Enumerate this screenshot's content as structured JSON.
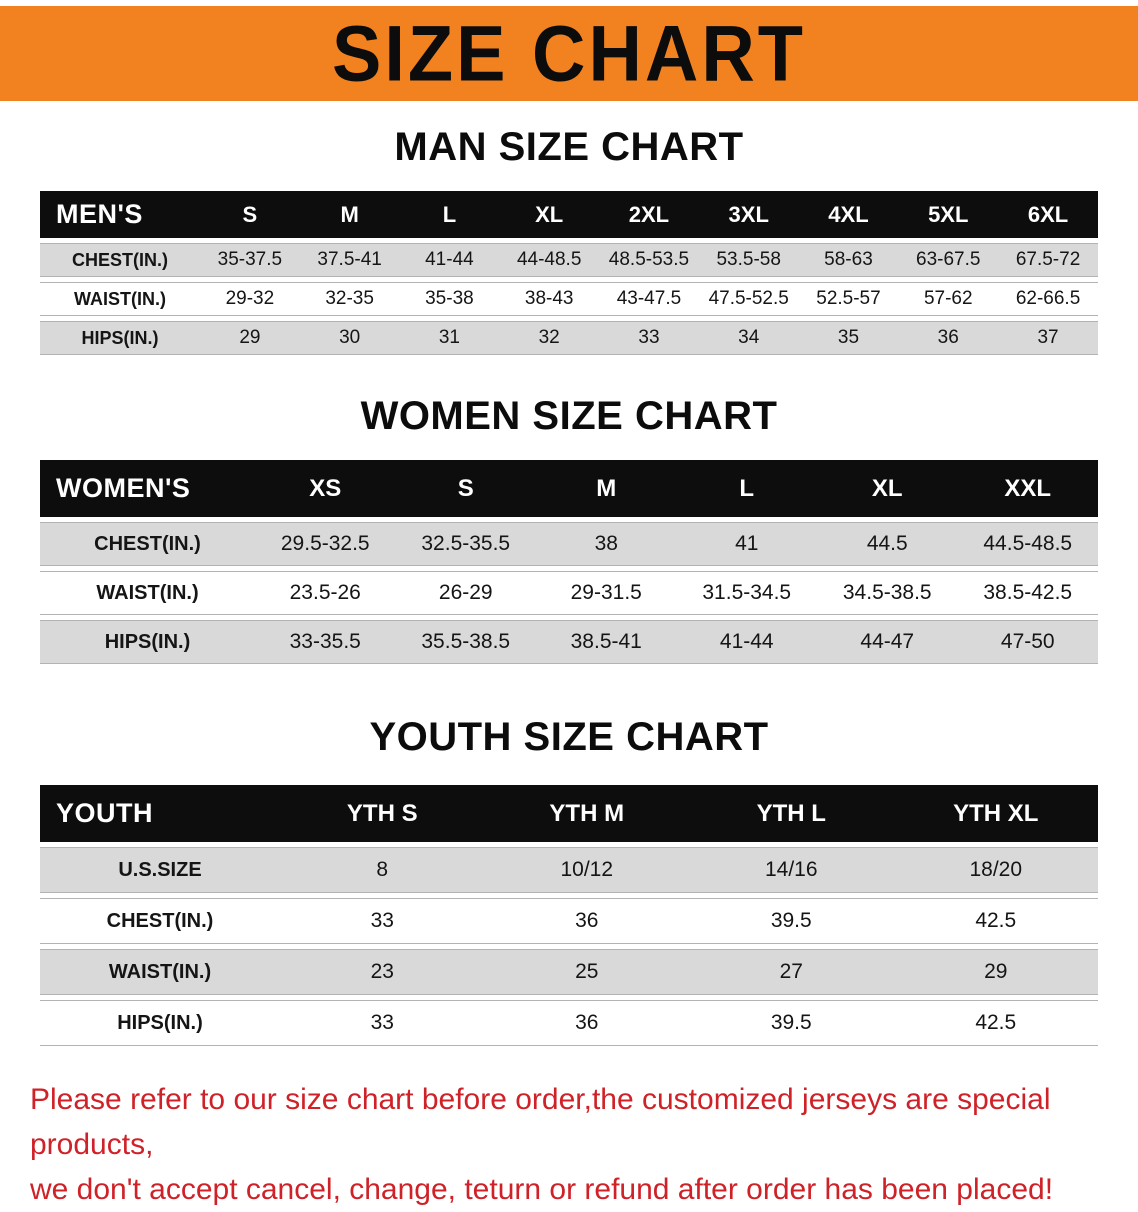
{
  "banner": {
    "title": "SIZE CHART",
    "bg_color": "#f28120"
  },
  "colors": {
    "table_header_bg": "#0d0d0d",
    "row_alt_gray": "#d9d9d9",
    "notice_red": "#cf2228"
  },
  "man": {
    "heading": "MAN SIZE CHART",
    "header": [
      "MEN'S",
      "S",
      "M",
      "L",
      "XL",
      "2XL",
      "3XL",
      "4XL",
      "5XL",
      "6XL"
    ],
    "rows": [
      [
        "CHEST(IN.)",
        "35-37.5",
        "37.5-41",
        "41-44",
        "44-48.5",
        "48.5-53.5",
        "53.5-58",
        "58-63",
        "63-67.5",
        "67.5-72"
      ],
      [
        "WAIST(IN.)",
        "29-32",
        "32-35",
        "35-38",
        "38-43",
        "43-47.5",
        "47.5-52.5",
        "52.5-57",
        "57-62",
        "62-66.5"
      ],
      [
        "HIPS(IN.)",
        "29",
        "30",
        "31",
        "32",
        "33",
        "34",
        "35",
        "36",
        "37"
      ]
    ]
  },
  "women": {
    "heading": "WOMEN SIZE CHART",
    "header": [
      "WOMEN'S",
      "XS",
      "S",
      "M",
      "L",
      "XL",
      "XXL"
    ],
    "rows": [
      [
        "CHEST(IN.)",
        "29.5-32.5",
        "32.5-35.5",
        "38",
        "41",
        "44.5",
        "44.5-48.5"
      ],
      [
        "WAIST(IN.)",
        "23.5-26",
        "26-29",
        "29-31.5",
        "31.5-34.5",
        "34.5-38.5",
        "38.5-42.5"
      ],
      [
        "HIPS(IN.)",
        "33-35.5",
        "35.5-38.5",
        "38.5-41",
        "41-44",
        "44-47",
        "47-50"
      ]
    ]
  },
  "youth": {
    "heading": "YOUTH SIZE CHART",
    "header": [
      "YOUTH",
      "YTH S",
      "YTH M",
      "YTH L",
      "YTH XL"
    ],
    "rows": [
      [
        "U.S.SIZE",
        "8",
        "10/12",
        "14/16",
        "18/20"
      ],
      [
        "CHEST(IN.)",
        "33",
        "36",
        "39.5",
        "42.5"
      ],
      [
        "WAIST(IN.)",
        "23",
        "25",
        "27",
        "29"
      ],
      [
        "HIPS(IN.)",
        "33",
        "36",
        "39.5",
        "42.5"
      ]
    ]
  },
  "notice": {
    "line1": "Please refer to our size chart before order,the customized jerseys are special products,",
    "line2": "we don't accept cancel, change, teturn or refund after order has been placed!"
  }
}
